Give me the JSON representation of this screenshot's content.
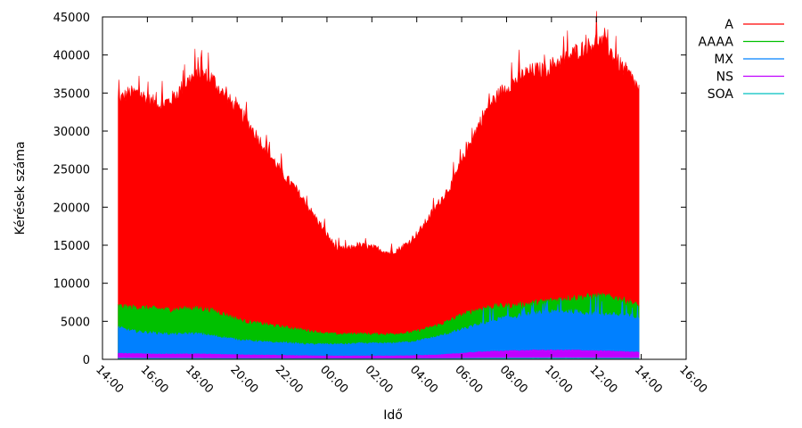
{
  "chart_data": {
    "type": "area",
    "title": "",
    "xlabel": "Idő",
    "ylabel": "Kérések száma",
    "x_tick_labels": [
      "14:00",
      "16:00",
      "18:00",
      "20:00",
      "22:00",
      "00:00",
      "02:00",
      "04:00",
      "06:00",
      "08:00",
      "10:00",
      "12:00",
      "14:00",
      "16:00"
    ],
    "x_tick_hours": [
      0,
      2,
      4,
      6,
      8,
      10,
      12,
      14,
      16,
      18,
      20,
      22,
      24,
      26
    ],
    "y_ticks": [
      0,
      5000,
      10000,
      15000,
      20000,
      25000,
      30000,
      35000,
      40000,
      45000
    ],
    "ylim": [
      0,
      45000
    ],
    "xlim_hours": [
      0,
      26
    ],
    "grid": false,
    "stacked": true,
    "legend_position": "top-right",
    "series_keys": [
      "A",
      "AAAA",
      "MX",
      "NS",
      "SOA"
    ],
    "series": {
      "A": {
        "name": "A",
        "color": "#ff0000",
        "top_profile": [
          34000,
          35000,
          35000,
          34000,
          33500,
          34000,
          35500,
          37000,
          37500,
          37000,
          35000,
          33500,
          32000,
          30000,
          28000,
          26000,
          24000,
          22500,
          20500,
          18500,
          16500,
          14500,
          14500,
          15000,
          14800,
          14500,
          14000,
          14500,
          15500,
          17000,
          19000,
          21000,
          23000,
          26000,
          29000,
          32000,
          34000,
          35500,
          36500,
          37500,
          38000,
          38000,
          39000,
          39500,
          40500,
          41000,
          42000,
          41000,
          39000,
          37500,
          35500
        ]
      },
      "AAAA": {
        "name": "AAAA",
        "color": "#00c000",
        "top_profile": [
          7000,
          6800,
          6800,
          6700,
          6600,
          6500,
          6600,
          6700,
          6600,
          6400,
          6000,
          5500,
          5000,
          4800,
          4600,
          4400,
          4200,
          4000,
          3800,
          3600,
          3400,
          3300,
          3300,
          3400,
          3300,
          3300,
          3300,
          3400,
          3500,
          3800,
          4200,
          4600,
          5200,
          5800,
          6300,
          6700,
          6900,
          7000,
          7000,
          7200,
          7400,
          7600,
          7800,
          8000,
          8100,
          8200,
          8300,
          8200,
          8000,
          7600,
          7000
        ]
      },
      "MX": {
        "name": "MX",
        "color": "#0080ff",
        "top_profile": [
          4200,
          3800,
          3600,
          3500,
          3400,
          3300,
          3300,
          3400,
          3300,
          3100,
          2900,
          2700,
          2500,
          2400,
          2300,
          2200,
          2200,
          2100,
          2000,
          2000,
          2000,
          2000,
          2000,
          2100,
          2100,
          2100,
          2100,
          2200,
          2300,
          2500,
          2800,
          3100,
          3500,
          3900,
          4300,
          4700,
          5100,
          5400,
          5600,
          5800,
          6000,
          6100,
          6200,
          6300,
          6200,
          6100,
          6000,
          5900,
          5800,
          5700,
          5400
        ]
      },
      "NS": {
        "name": "NS",
        "color": "#c000ff",
        "top_profile": [
          800,
          750,
          750,
          720,
          700,
          700,
          700,
          720,
          700,
          680,
          650,
          620,
          600,
          580,
          560,
          540,
          520,
          500,
          480,
          460,
          450,
          440,
          440,
          450,
          450,
          450,
          450,
          460,
          480,
          520,
          560,
          620,
          700,
          800,
          900,
          1000,
          1050,
          1100,
          1150,
          1150,
          1200,
          1200,
          1200,
          1200,
          1200,
          1150,
          1100,
          1100,
          1050,
          1000,
          950
        ]
      },
      "SOA": {
        "name": "SOA",
        "color": "#00c0c0",
        "top_profile": [
          150,
          140,
          140,
          140,
          130,
          130,
          130,
          130,
          130,
          120,
          120,
          110,
          110,
          100,
          100,
          100,
          90,
          90,
          90,
          90,
          90,
          90,
          90,
          90,
          90,
          90,
          90,
          90,
          90,
          100,
          100,
          110,
          120,
          130,
          140,
          150,
          160,
          170,
          170,
          170,
          180,
          180,
          180,
          180,
          180,
          170,
          170,
          160,
          160,
          150,
          150
        ]
      }
    },
    "data_start_hour": 0.7,
    "data_end_hour": 23.9
  }
}
